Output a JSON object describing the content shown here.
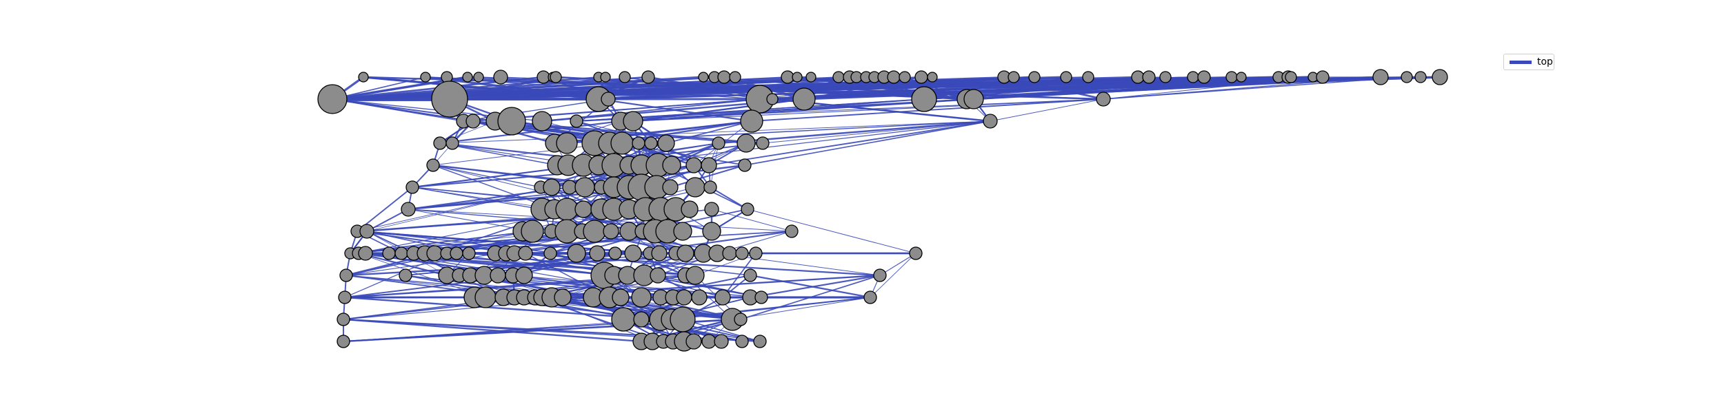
{
  "legend": {
    "label": "top"
  },
  "colors": {
    "edge": "#3a49b9",
    "node_fill": "#8c8c8c",
    "node_stroke": "#000000"
  },
  "graph": {
    "description_free": true,
    "node_count_visible": 247
  }
}
